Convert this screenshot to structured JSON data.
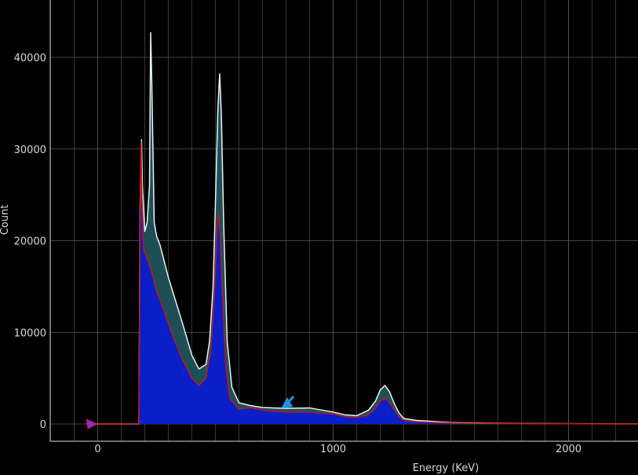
{
  "chart_data": {
    "type": "area",
    "xlabel": "Energy (KeV)",
    "ylabel": "Count",
    "xlim": [
      -200,
      2300
    ],
    "ylim": [
      -1800,
      45000
    ],
    "grid": true,
    "x_ticks": [
      0,
      1000,
      2000
    ],
    "y_ticks": [
      0,
      10000,
      20000,
      30000,
      40000
    ],
    "colors": {
      "background": "#000000",
      "grid": "#5a5a5a",
      "series_1_fill": "#1f4f56",
      "series_1_line": "#e8f4f4",
      "series_2_fill": "#0a1fc8",
      "series_2_line": "#c01818",
      "left_marker": "#8a2be2",
      "center_marker": "#1e8fe0"
    },
    "series": [
      {
        "x": [
          -50,
          175,
          180,
          186,
          190,
          200,
          210,
          220,
          225,
          230,
          240,
          250,
          265,
          280,
          300,
          330,
          360,
          400,
          430,
          460,
          475,
          490,
          500,
          510,
          518,
          525,
          535,
          550,
          570,
          600,
          650,
          700,
          800,
          900,
          1000,
          1050,
          1100,
          1150,
          1180,
          1200,
          1220,
          1240,
          1260,
          1280,
          1300,
          1350,
          1500,
          1700,
          2000,
          2300
        ],
        "values": [
          0,
          0,
          24000,
          31000,
          26000,
          21000,
          22000,
          26000,
          42700,
          37000,
          22000,
          20500,
          19500,
          18000,
          16000,
          13500,
          11000,
          7500,
          6000,
          6500,
          9000,
          15000,
          24000,
          34000,
          38200,
          34000,
          22000,
          9000,
          4000,
          2300,
          2000,
          1800,
          1700,
          1750,
          1300,
          1000,
          900,
          1500,
          2500,
          3700,
          4200,
          3500,
          2200,
          1200,
          600,
          400,
          150,
          80,
          30,
          10
        ]
      },
      {
        "x": [
          -50,
          175,
          180,
          184,
          188,
          195,
          210,
          230,
          250,
          280,
          320,
          360,
          400,
          430,
          460,
          480,
          495,
          505,
          512,
          520,
          530,
          545,
          560,
          600,
          650,
          700,
          800,
          900,
          1000,
          1050,
          1100,
          1150,
          1180,
          1200,
          1220,
          1240,
          1260,
          1280,
          1300,
          1350,
          1500,
          1700,
          2000,
          2300
        ],
        "values": [
          0,
          0,
          22000,
          30800,
          24000,
          19000,
          18000,
          16500,
          14500,
          12500,
          9500,
          7000,
          5000,
          4200,
          5000,
          8000,
          14000,
          20000,
          23000,
          21000,
          14000,
          6000,
          2800,
          1600,
          1800,
          1500,
          1300,
          1300,
          1100,
          800,
          700,
          1000,
          1700,
          2500,
          2800,
          2300,
          1500,
          800,
          400,
          250,
          100,
          50,
          20,
          5
        ]
      }
    ]
  }
}
